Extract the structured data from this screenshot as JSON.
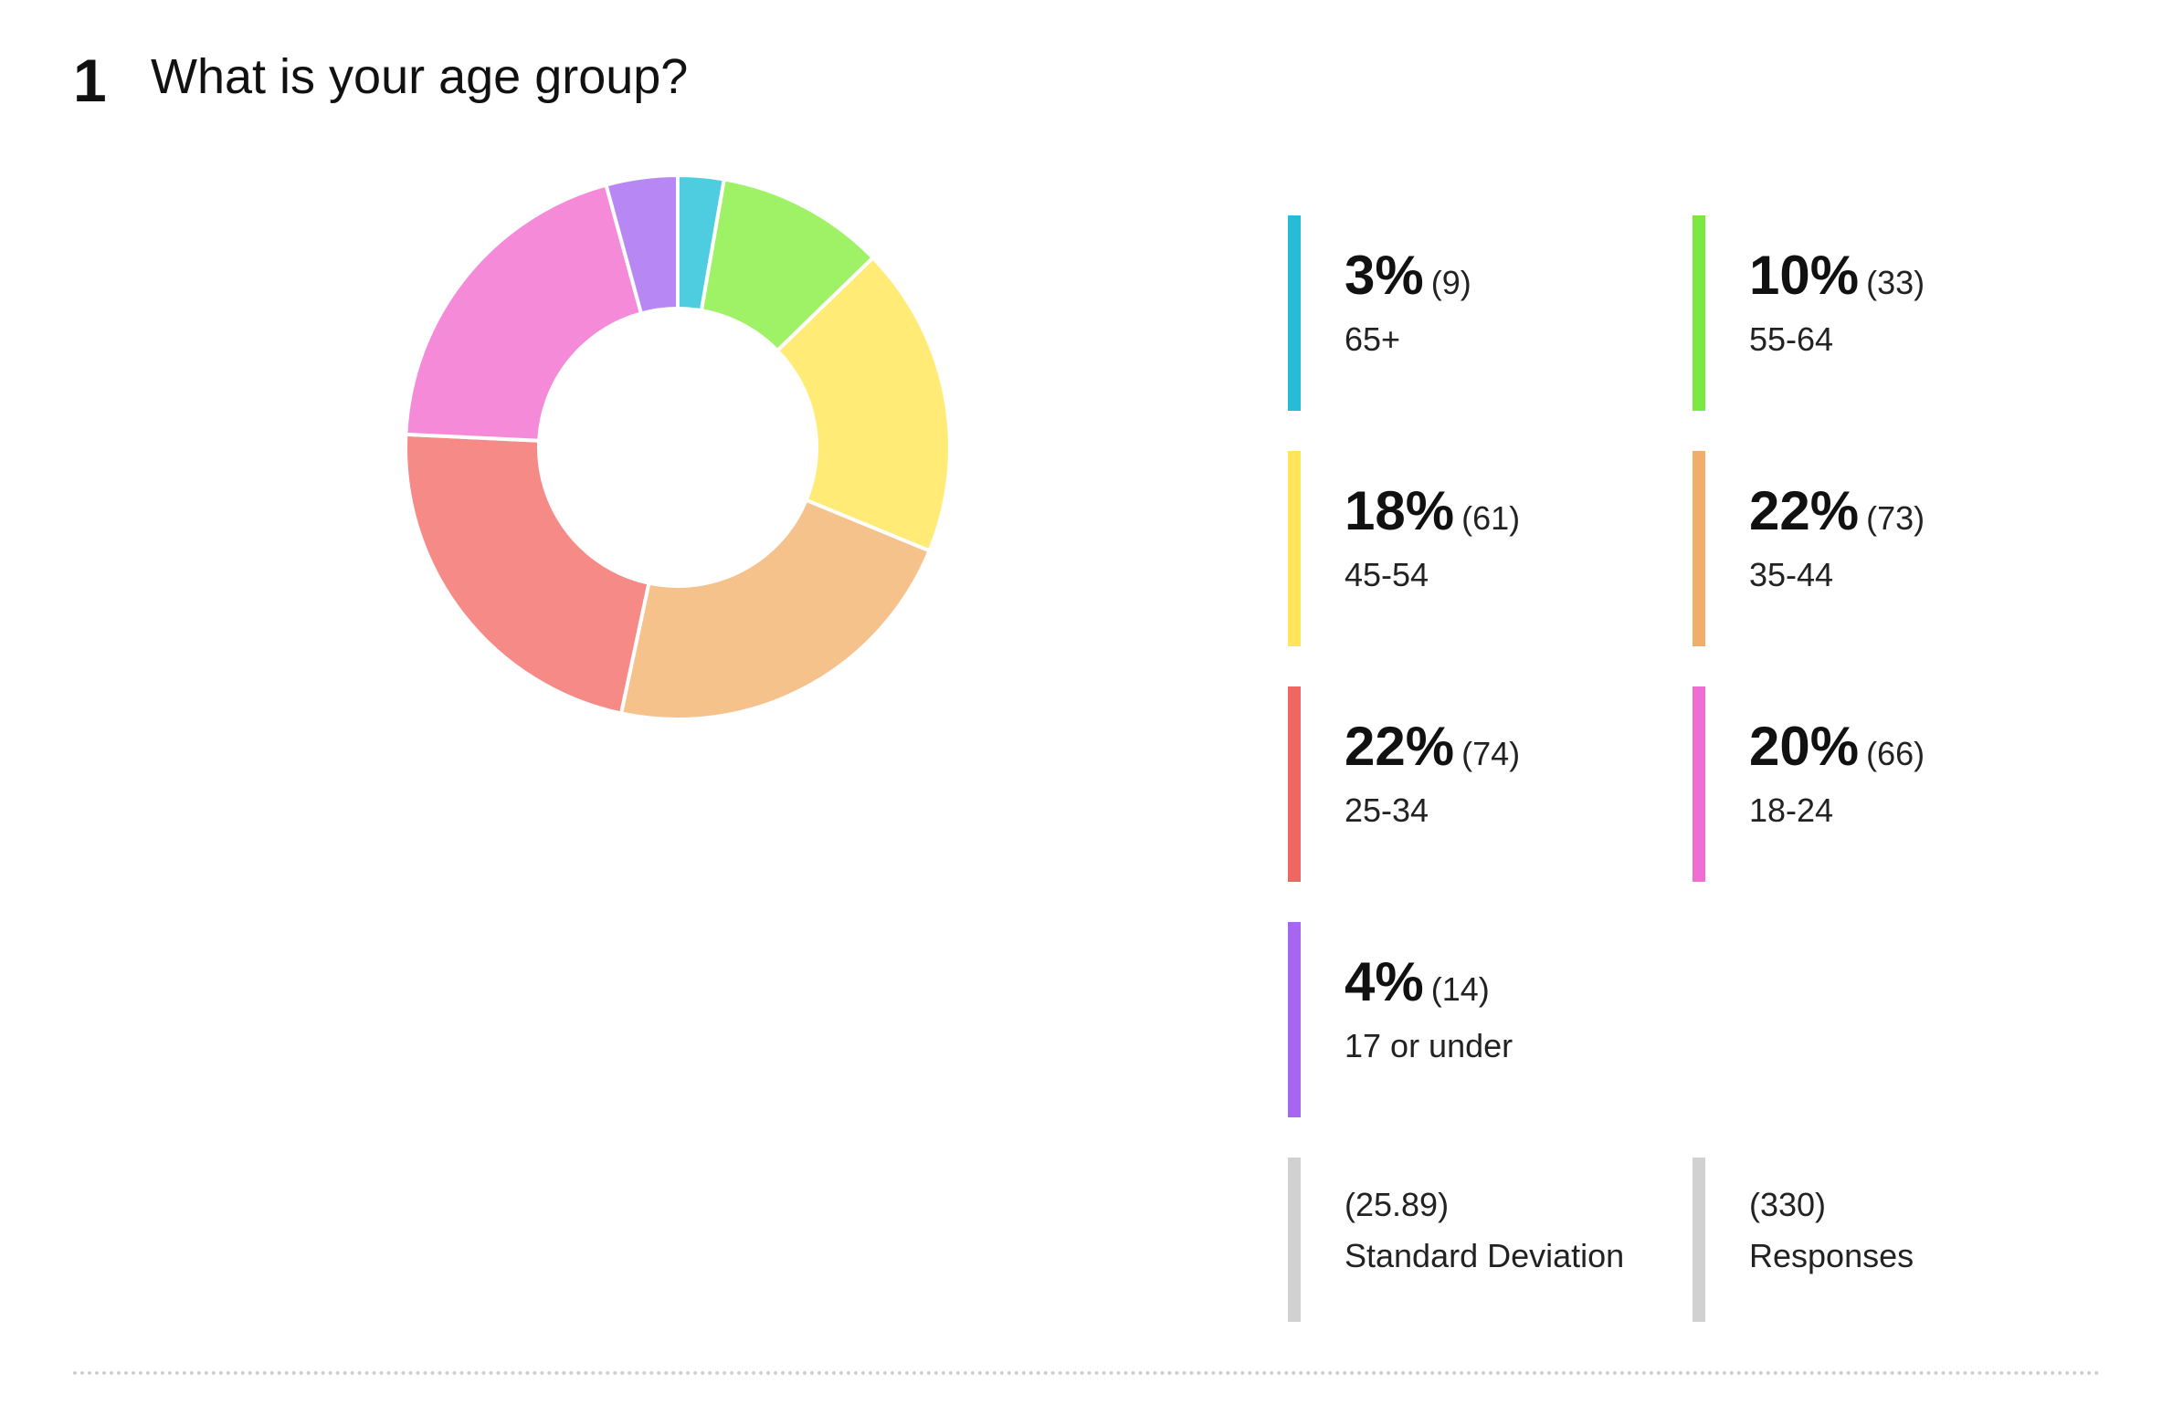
{
  "question": {
    "number": "1",
    "title": "What is your age group?"
  },
  "chart_data": {
    "type": "pie",
    "donut": true,
    "categories": [
      "65+",
      "55-64",
      "45-54",
      "35-44",
      "25-34",
      "18-24",
      "17 or under"
    ],
    "values": [
      9,
      33,
      61,
      73,
      74,
      66,
      14
    ],
    "percent_labels": [
      "3%",
      "10%",
      "18%",
      "22%",
      "22%",
      "20%",
      "4%"
    ],
    "count_labels": [
      "(9)",
      "(33)",
      "(61)",
      "(73)",
      "(74)",
      "(66)",
      "(14)"
    ],
    "colors": [
      "#4ecde0",
      "#9ff266",
      "#ffeb76",
      "#f6c28b",
      "#f58a87",
      "#f58ad9",
      "#b787f4"
    ],
    "legend_colors": [
      "#27bcd6",
      "#7de83f",
      "#ffe55a",
      "#f0ae6a",
      "#ef6663",
      "#ef6ed3",
      "#a766ef"
    ],
    "legend_placement": "right",
    "stats": {
      "std_dev_value": "(25.89)",
      "std_dev_label": "Standard Deviation",
      "responses_value": "(330)",
      "responses_label": "Responses"
    }
  }
}
